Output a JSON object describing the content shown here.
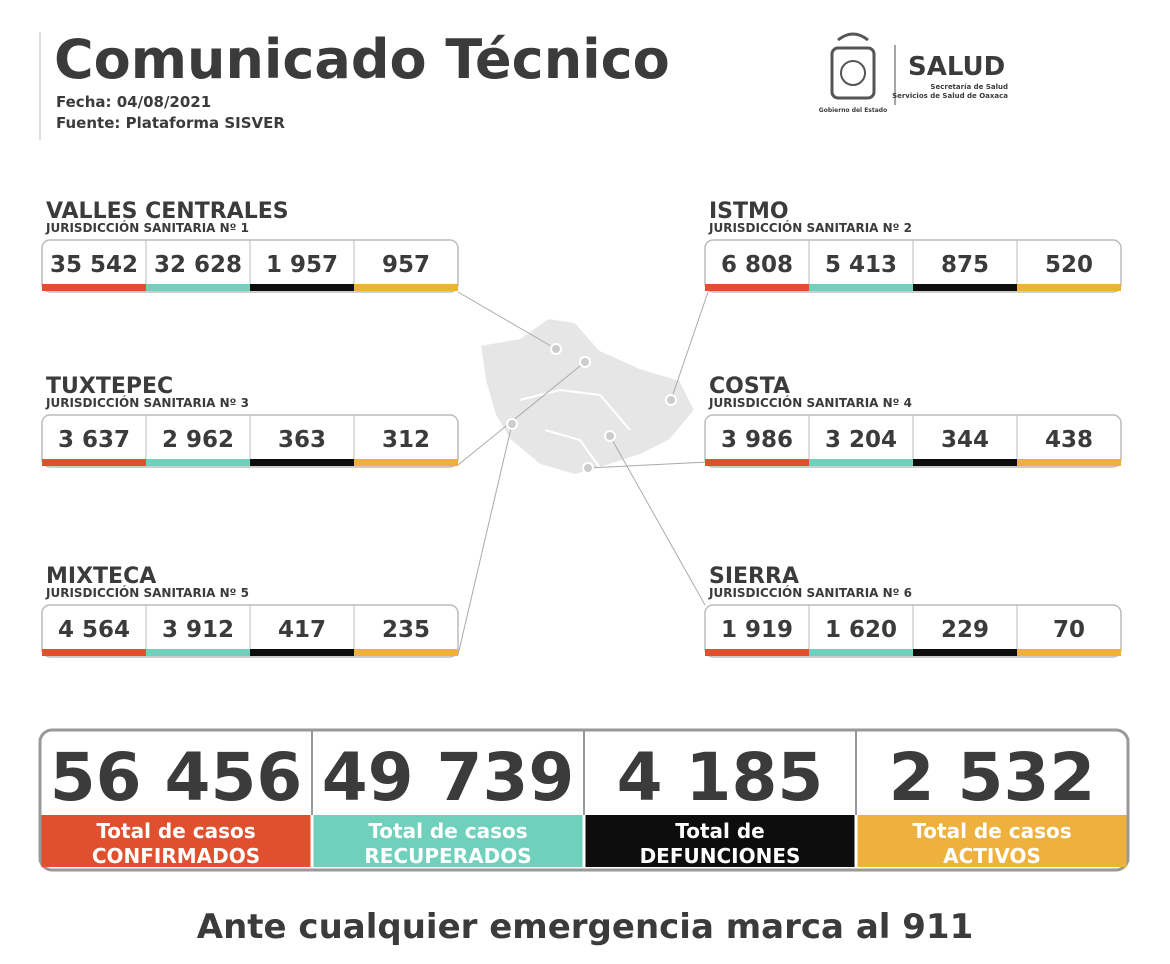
{
  "header": {
    "title": "Comunicado Técnico",
    "date": "Fecha: 04/08/2021",
    "source": "Fuente: Plataforma SISVER",
    "logo": {
      "main": "SALUD",
      "line1": "Secretaría de Salud",
      "line2": "Servicios de Salud de Oaxaca",
      "gov": "Gobierno del Estado"
    }
  },
  "regions": [
    {
      "name": "VALLES CENTRALES",
      "jurisdiction": "JURISDICCIÓN SANITARIA Nº 1",
      "values": [
        "35 542",
        "32 628",
        "1 957",
        "957"
      ]
    },
    {
      "name": "ISTMO",
      "jurisdiction": "JURISDICCIÓN SANITARIA Nº 2",
      "values": [
        "6 808",
        "5 413",
        "875",
        "520"
      ]
    },
    {
      "name": "TUXTEPEC",
      "jurisdiction": "JURISDICCIÓN SANITARIA Nº 3",
      "values": [
        "3 637",
        "2 962",
        "363",
        "312"
      ]
    },
    {
      "name": "COSTA",
      "jurisdiction": "JURISDICCIÓN SANITARIA Nº 4",
      "values": [
        "3 986",
        "3 204",
        "344",
        "438"
      ]
    },
    {
      "name": "MIXTECA",
      "jurisdiction": "JURISDICCIÓN SANITARIA Nº 5",
      "values": [
        "4 564",
        "3 912",
        "417",
        "235"
      ]
    },
    {
      "name": "SIERRA",
      "jurisdiction": "JURISDICCIÓN SANITARIA Nº 6",
      "values": [
        "1 919",
        "1 620",
        "229",
        "70"
      ]
    }
  ],
  "totals": [
    {
      "value": "56 456",
      "label": [
        "Total de casos",
        "CONFIRMADOS"
      ],
      "color": "#e0502e"
    },
    {
      "value": "49 739",
      "label": [
        "Total de casos",
        "RECUPERADOS"
      ],
      "color": "#6fd0bb"
    },
    {
      "value": "4 185",
      "label": [
        "Total de",
        "DEFUNCIONES"
      ],
      "color": "#0d0d0d"
    },
    {
      "value": "2 532",
      "label": [
        "Total de casos",
        "ACTIVOS"
      ],
      "color": "#efb13e"
    }
  ],
  "footer": "Ante cualquier emergencia marca al 911"
}
